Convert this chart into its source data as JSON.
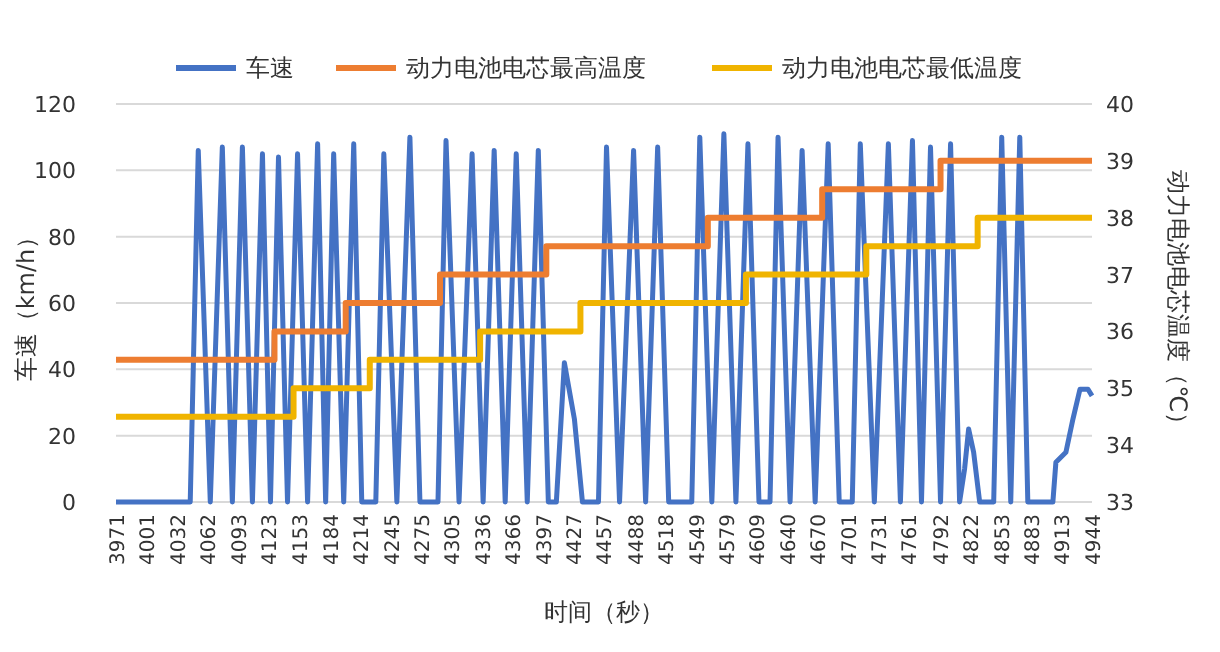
{
  "chart_data": {
    "type": "line",
    "xlabel": "时间（秒）",
    "ylabel": "车速（km/h）",
    "y2label": "动力电池电芯温度（℃）",
    "xlim": [
      3971,
      4944
    ],
    "xticks": [
      3971,
      4001,
      4032,
      4062,
      4093,
      4123,
      4153,
      4184,
      4214,
      4245,
      4275,
      4305,
      4336,
      4366,
      4397,
      4427,
      4457,
      4488,
      4518,
      4549,
      4579,
      4609,
      4640,
      4670,
      4701,
      4731,
      4761,
      4792,
      4822,
      4853,
      4883,
      4913,
      4944
    ],
    "ylim": [
      0,
      120
    ],
    "yticks": [
      0,
      20,
      40,
      60,
      80,
      100,
      120
    ],
    "y2lim": [
      33,
      40
    ],
    "y2ticks": [
      33,
      34,
      35,
      36,
      37,
      38,
      39,
      40
    ],
    "grid": "y",
    "legend": "top",
    "series": [
      {
        "name": "车速",
        "color": "#4472c4",
        "x": [
          3971,
          4045,
          4053,
          4065,
          4077,
          4087,
          4097,
          4107,
          4117,
          4125,
          4133,
          4142,
          4152,
          4162,
          4172,
          4180,
          4188,
          4198,
          4208,
          4216,
          4230,
          4238,
          4251,
          4264,
          4274,
          4292,
          4300,
          4313,
          4326,
          4337,
          4348,
          4359,
          4370,
          4381,
          4392,
          4402,
          4410,
          4418,
          4428,
          4436,
          4452,
          4460,
          4473,
          4487,
          4499,
          4511,
          4522,
          4545,
          4553,
          4565,
          4577,
          4589,
          4601,
          4612,
          4623,
          4631,
          4643,
          4655,
          4668,
          4681,
          4692,
          4705,
          4713,
          4727,
          4741,
          4753,
          4765,
          4774,
          4783,
          4793,
          4803,
          4812,
          4817,
          4821,
          4826,
          4832,
          4846,
          4854,
          4863,
          4872,
          4880,
          4905,
          4908,
          4918,
          4925,
          4932,
          4940,
          4944
        ],
        "values": [
          0,
          0,
          106,
          0,
          107,
          0,
          107,
          0,
          105,
          0,
          104,
          0,
          105,
          0,
          108,
          0,
          105,
          0,
          108,
          0,
          0,
          105,
          0,
          110,
          0,
          0,
          109,
          0,
          105,
          0,
          106,
          0,
          105,
          0,
          106,
          0,
          0,
          42,
          25,
          0,
          0,
          107,
          0,
          106,
          0,
          107,
          0,
          0,
          110,
          0,
          111,
          0,
          108,
          0,
          0,
          110,
          0,
          106,
          0,
          108,
          0,
          0,
          108,
          0,
          108,
          0,
          109,
          0,
          107,
          0,
          108,
          0,
          10,
          22,
          15,
          0,
          0,
          110,
          0,
          110,
          0,
          0,
          12,
          15,
          25,
          34,
          34,
          32
        ]
      },
      {
        "name": "动力电池电芯最高温度",
        "color": "#ed7d31",
        "type": "step",
        "axis": "y2",
        "x": [
          3971,
          4129,
          4200,
          4294,
          4400,
          4561,
          4675,
          4793,
          4944
        ],
        "values": [
          35.5,
          36,
          36.5,
          37,
          37.5,
          38,
          38.5,
          39,
          39
        ]
      },
      {
        "name": "动力电池电芯最低温度",
        "color": "#f0b400",
        "type": "step",
        "axis": "y2",
        "x": [
          3971,
          4148,
          4224,
          4334,
          4434,
          4599,
          4719,
          4830,
          4944
        ],
        "values": [
          34.5,
          35,
          35.5,
          36,
          36.5,
          37,
          37.5,
          38,
          38
        ]
      }
    ]
  }
}
